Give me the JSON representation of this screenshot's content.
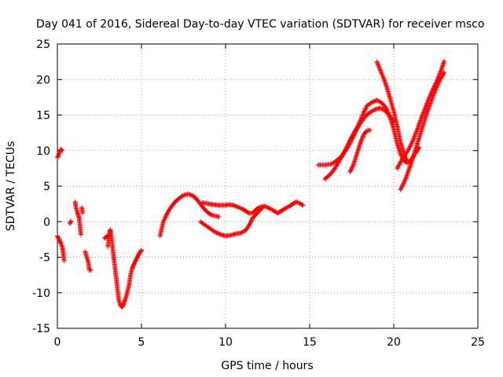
{
  "chart_data": {
    "type": "scatter",
    "title": "Day 041 of 2016, Sidereal Day-to-day VTEC variation (SDTVAR) for receiver msco",
    "xlabel": "GPS time / hours",
    "ylabel": "SDTVAR / TECUs",
    "xlim": [
      0,
      25
    ],
    "ylim": [
      -15,
      25
    ],
    "x_ticks": [
      0,
      5,
      10,
      15,
      20,
      25
    ],
    "y_ticks": [
      -15,
      -10,
      -5,
      0,
      5,
      10,
      15,
      20,
      25
    ],
    "grid": true,
    "marker": "plus",
    "series_color": "#ff0000",
    "tracks": [
      [
        [
          0.0,
          9.0
        ],
        [
          0.1,
          9.6
        ],
        [
          0.2,
          10.2
        ],
        [
          0.3,
          10.0
        ]
      ],
      [
        [
          0.0,
          -2.0
        ],
        [
          0.1,
          -2.5
        ],
        [
          0.2,
          -3.0
        ],
        [
          0.3,
          -3.6
        ],
        [
          0.35,
          -4.5
        ],
        [
          0.4,
          -5.5
        ]
      ],
      [
        [
          0.75,
          -0.3
        ],
        [
          0.8,
          0.1
        ]
      ],
      [
        [
          1.05,
          2.8
        ],
        [
          1.1,
          2.0
        ],
        [
          1.2,
          1.2
        ],
        [
          1.3,
          0.5
        ],
        [
          1.35,
          -0.8
        ],
        [
          1.4,
          -1.8
        ]
      ],
      [
        [
          1.45,
          2.0
        ],
        [
          1.5,
          1.2
        ]
      ],
      [
        [
          1.65,
          -4.2
        ],
        [
          1.75,
          -5.0
        ],
        [
          1.85,
          -5.8
        ],
        [
          1.9,
          -6.8
        ],
        [
          2.0,
          -6.8
        ]
      ],
      [
        [
          2.8,
          -2.3
        ],
        [
          3.0,
          -2.0
        ]
      ],
      [
        [
          3.0,
          -3.5
        ],
        [
          3.05,
          -2.5
        ],
        [
          3.1,
          -1.5
        ],
        [
          3.15,
          -1.1
        ],
        [
          3.2,
          -2.0
        ],
        [
          3.25,
          -3.0
        ],
        [
          3.3,
          -4.0
        ],
        [
          3.35,
          -5.0
        ],
        [
          3.4,
          -6.0
        ],
        [
          3.45,
          -7.0
        ],
        [
          3.5,
          -8.0
        ],
        [
          3.55,
          -9.0
        ],
        [
          3.6,
          -10.0
        ],
        [
          3.65,
          -11.0
        ],
        [
          3.75,
          -11.8
        ],
        [
          3.85,
          -12.0
        ],
        [
          3.95,
          -11.5
        ],
        [
          4.05,
          -10.8
        ],
        [
          4.15,
          -10.0
        ],
        [
          4.25,
          -9.0
        ],
        [
          4.35,
          -7.5
        ],
        [
          4.45,
          -6.5
        ],
        [
          4.55,
          -6.0
        ],
        [
          4.65,
          -5.5
        ],
        [
          4.75,
          -5.0
        ],
        [
          4.85,
          -4.5
        ],
        [
          4.95,
          -4.2
        ],
        [
          5.0,
          -4.0
        ]
      ],
      [
        [
          6.1,
          -2.0
        ],
        [
          6.2,
          -1.0
        ],
        [
          6.3,
          0.0
        ],
        [
          6.45,
          0.8
        ],
        [
          6.6,
          1.5
        ],
        [
          6.8,
          2.2
        ],
        [
          7.0,
          2.8
        ],
        [
          7.2,
          3.2
        ],
        [
          7.4,
          3.6
        ],
        [
          7.6,
          3.8
        ],
        [
          7.8,
          3.9
        ],
        [
          8.0,
          3.7
        ],
        [
          8.2,
          3.4
        ],
        [
          8.4,
          2.8
        ],
        [
          8.6,
          2.2
        ],
        [
          8.8,
          1.6
        ],
        [
          9.0,
          1.2
        ],
        [
          9.2,
          0.9
        ],
        [
          9.4,
          0.8
        ],
        [
          9.6,
          0.7
        ]
      ],
      [
        [
          8.6,
          2.7
        ],
        [
          8.8,
          2.6
        ],
        [
          9.0,
          2.5
        ],
        [
          9.3,
          2.4
        ],
        [
          9.6,
          2.3
        ],
        [
          9.9,
          2.3
        ],
        [
          10.2,
          2.4
        ],
        [
          10.5,
          2.3
        ],
        [
          10.8,
          2.0
        ],
        [
          11.0,
          1.8
        ],
        [
          11.2,
          1.5
        ],
        [
          11.4,
          1.2
        ],
        [
          11.6,
          1.2
        ],
        [
          11.8,
          1.7
        ],
        [
          12.0,
          2.0
        ],
        [
          12.3,
          2.2
        ],
        [
          12.6,
          1.9
        ],
        [
          12.9,
          1.5
        ],
        [
          13.1,
          1.2
        ],
        [
          13.3,
          1.5
        ],
        [
          13.5,
          1.8
        ],
        [
          13.8,
          2.2
        ],
        [
          14.0,
          2.5
        ],
        [
          14.2,
          2.8
        ],
        [
          14.4,
          2.6
        ],
        [
          14.6,
          2.3
        ]
      ],
      [
        [
          8.5,
          0.0
        ],
        [
          8.8,
          -0.5
        ],
        [
          9.1,
          -1.0
        ],
        [
          9.4,
          -1.5
        ],
        [
          9.7,
          -1.8
        ],
        [
          10.0,
          -2.0
        ],
        [
          10.3,
          -1.9
        ],
        [
          10.6,
          -1.7
        ],
        [
          10.9,
          -1.6
        ],
        [
          11.2,
          -1.2
        ],
        [
          11.4,
          -0.5
        ],
        [
          11.6,
          0.5
        ],
        [
          11.8,
          1.0
        ],
        [
          12.0,
          1.5
        ],
        [
          12.2,
          2.0
        ]
      ],
      [
        [
          15.5,
          8.0
        ],
        [
          15.9,
          8.0
        ],
        [
          16.3,
          8.1
        ],
        [
          16.6,
          8.6
        ],
        [
          16.9,
          9.2
        ],
        [
          17.2,
          10.2
        ],
        [
          17.5,
          11.5
        ],
        [
          17.8,
          13.0
        ],
        [
          18.0,
          14.2
        ],
        [
          18.2,
          15.3
        ],
        [
          18.4,
          16.3
        ],
        [
          18.7,
          16.8
        ],
        [
          19.0,
          17.1
        ],
        [
          19.3,
          16.7
        ],
        [
          19.6,
          15.8
        ],
        [
          19.8,
          14.5
        ],
        [
          20.0,
          13.0
        ],
        [
          20.2,
          11.0
        ],
        [
          20.4,
          9.5
        ],
        [
          20.6,
          8.6
        ],
        [
          20.8,
          8.3
        ],
        [
          21.0,
          8.6
        ],
        [
          21.2,
          9.3
        ],
        [
          21.4,
          10.0
        ],
        [
          21.5,
          10.5
        ]
      ],
      [
        [
          15.9,
          6.0
        ],
        [
          16.2,
          6.6
        ],
        [
          16.5,
          7.5
        ],
        [
          16.8,
          8.7
        ],
        [
          17.1,
          10.0
        ],
        [
          17.4,
          11.5
        ],
        [
          17.7,
          12.8
        ],
        [
          18.0,
          13.8
        ],
        [
          18.3,
          14.8
        ],
        [
          18.6,
          15.4
        ],
        [
          18.9,
          15.8
        ],
        [
          19.2,
          16.0
        ],
        [
          19.5,
          15.6
        ],
        [
          19.8,
          14.8
        ],
        [
          20.0,
          14.0
        ]
      ],
      [
        [
          17.4,
          7.0
        ],
        [
          17.6,
          8.0
        ],
        [
          17.8,
          9.5
        ],
        [
          18.0,
          11.0
        ],
        [
          18.2,
          12.2
        ],
        [
          18.4,
          12.8
        ],
        [
          18.6,
          12.9
        ]
      ],
      [
        [
          19.0,
          22.5
        ],
        [
          19.2,
          21.3
        ],
        [
          19.4,
          20.2
        ],
        [
          19.6,
          18.8
        ],
        [
          19.8,
          17.2
        ],
        [
          20.0,
          15.5
        ],
        [
          20.2,
          13.5
        ],
        [
          20.4,
          11.2
        ],
        [
          20.6,
          9.6
        ],
        [
          20.8,
          8.5
        ]
      ],
      [
        [
          20.2,
          7.5
        ],
        [
          20.5,
          8.8
        ],
        [
          20.8,
          9.8
        ],
        [
          21.1,
          11.2
        ],
        [
          21.4,
          13.0
        ],
        [
          21.7,
          15.0
        ],
        [
          22.0,
          16.8
        ],
        [
          22.3,
          18.5
        ],
        [
          22.6,
          20.0
        ],
        [
          22.8,
          21.2
        ],
        [
          23.0,
          22.6
        ]
      ],
      [
        [
          20.4,
          4.5
        ],
        [
          20.7,
          6.0
        ],
        [
          21.0,
          8.0
        ],
        [
          21.3,
          10.2
        ],
        [
          21.6,
          12.5
        ],
        [
          21.9,
          14.8
        ],
        [
          22.2,
          16.8
        ],
        [
          22.5,
          18.7
        ],
        [
          22.8,
          20.2
        ],
        [
          23.0,
          21.0
        ]
      ]
    ]
  }
}
